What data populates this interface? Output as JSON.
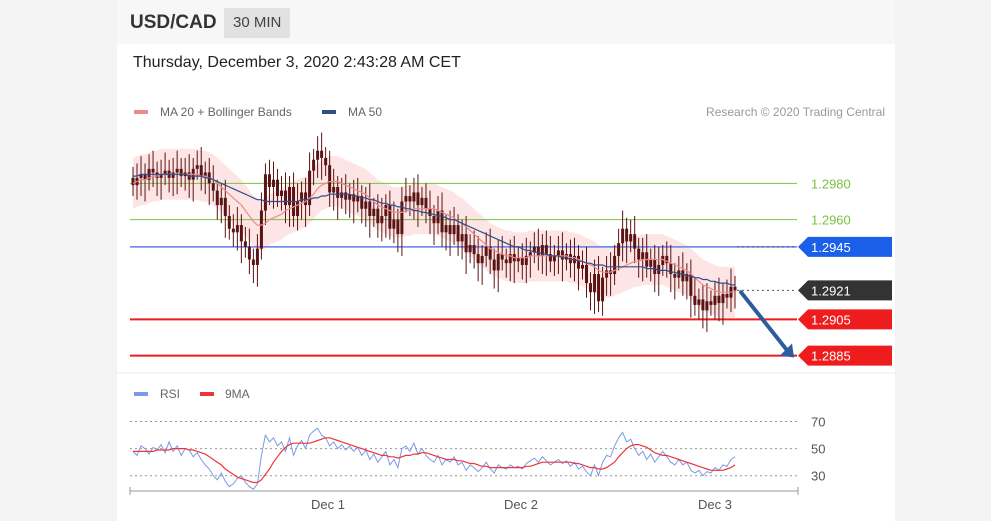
{
  "header": {
    "pair": "USD/CAD",
    "timeframe": "30 MIN"
  },
  "date_line": "Thursday, December 3, 2020 2:43:28 AM CET",
  "credit": "Research © 2020 Trading Central",
  "colors": {
    "ma20": "#f08a8a",
    "band": "#fde0e0",
    "ma50": "#2c4f8c",
    "candle": "#5a1414",
    "green_level": "#7bc043",
    "blue_level": "#5b7fe8",
    "red_level": "#ee1c1c",
    "current": "#333333",
    "arrow": "#2e5b9e",
    "rsi": "#7b9be3",
    "rsi_ma": "#e8383d"
  },
  "chart_data": [
    {
      "type": "candlestick",
      "legend": [
        {
          "label": "MA 20 + Bollinger Bands",
          "color": "#f08a8a"
        },
        {
          "label": "MA 50",
          "color": "#2c4f8c"
        }
      ],
      "ylim": [
        1.2876,
        1.3005
      ],
      "x_ticks": [
        "Dec 1",
        "Dec 2",
        "Dec 3"
      ],
      "levels": [
        {
          "value": 1.298,
          "label": "1.2980",
          "style": "green-line"
        },
        {
          "value": 1.296,
          "label": "1.2960",
          "style": "green-line"
        },
        {
          "value": 1.2945,
          "label": "1.2945",
          "style": "blue-tag"
        },
        {
          "value": 1.2921,
          "label": "1.2921",
          "style": "current-price-tag"
        },
        {
          "value": 1.2905,
          "label": "1.2905",
          "style": "red-tag"
        },
        {
          "value": 1.2885,
          "label": "1.2885",
          "style": "red-tag"
        }
      ],
      "forecast_arrow": {
        "from": 1.292,
        "to": 1.2884,
        "direction": "down"
      },
      "close": [
        1.2979,
        1.2983,
        1.2985,
        1.2982,
        1.2988,
        1.2986,
        1.2983,
        1.2985,
        1.2987,
        1.2983,
        1.2986,
        1.2988,
        1.2984,
        1.2986,
        1.2982,
        1.2988,
        1.299,
        1.2984,
        1.2986,
        1.298,
        1.2976,
        1.2968,
        1.2972,
        1.2962,
        1.2955,
        1.2953,
        1.2957,
        1.2948,
        1.2945,
        1.2938,
        1.2935,
        1.2944,
        1.2965,
        1.2985,
        1.2978,
        1.2982,
        1.2973,
        1.2976,
        1.2968,
        1.2978,
        1.2962,
        1.297,
        1.2975,
        1.2968,
        1.2987,
        1.2993,
        1.2998,
        1.2994,
        1.299,
        1.2975,
        1.2978,
        1.2972,
        1.2975,
        1.2971,
        1.2974,
        1.297,
        1.2973,
        1.2966,
        1.297,
        1.2962,
        1.2966,
        1.2958,
        1.2962,
        1.2968,
        1.2955,
        1.296,
        1.2952,
        1.297,
        1.2973,
        1.297,
        1.2975,
        1.2968,
        1.2972,
        1.2966,
        1.2962,
        1.2958,
        1.2965,
        1.2953,
        1.2957,
        1.2952,
        1.2957,
        1.2948,
        1.2952,
        1.2942,
        1.2946,
        1.2941,
        1.2936,
        1.294,
        1.2945,
        1.2938,
        1.2932,
        1.2941,
        1.2938,
        1.2936,
        1.2941,
        1.2937,
        1.2939,
        1.2935,
        1.294,
        1.2942,
        1.2945,
        1.294,
        1.2946,
        1.2941,
        1.2937,
        1.294,
        1.2943,
        1.2938,
        1.2941,
        1.2936,
        1.294,
        1.2933,
        1.2935,
        1.2925,
        1.292,
        1.293,
        1.2915,
        1.2928,
        1.2932,
        1.293,
        1.294,
        1.2947,
        1.2955,
        1.2948,
        1.2952,
        1.2944,
        1.2938,
        1.2942,
        1.2934,
        1.2938,
        1.293,
        1.2935,
        1.294,
        1.2936,
        1.293,
        1.2928,
        1.2932,
        1.2926,
        1.293,
        1.2918,
        1.2913,
        1.2916,
        1.291,
        1.2915,
        1.2913,
        1.2918,
        1.2914,
        1.2919,
        1.2917,
        1.2923,
        1.2921
      ],
      "ma20": [
        1.298,
        1.2981,
        1.2982,
        1.2982,
        1.2983,
        1.2984,
        1.2984,
        1.2985,
        1.2985,
        1.2985,
        1.2985,
        1.2985,
        1.2985,
        1.2985,
        1.2985,
        1.2985,
        1.2985,
        1.2984,
        1.2984,
        1.2983,
        1.2982,
        1.298,
        1.2978,
        1.2976,
        1.2974,
        1.2972,
        1.297,
        1.2968,
        1.2965,
        1.2962,
        1.2959,
        1.2957,
        1.2957,
        1.2958,
        1.296,
        1.2961,
        1.2962,
        1.2963,
        1.2965,
        1.2966,
        1.2967,
        1.2968,
        1.2969,
        1.297,
        1.2972,
        1.2974,
        1.2977,
        1.2979,
        1.298,
        1.2981,
        1.2981,
        1.2981,
        1.298,
        1.2979,
        1.2978,
        1.2977,
        1.2976,
        1.2975,
        1.2974,
        1.2972,
        1.297,
        1.2968,
        1.2967,
        1.2966,
        1.2965,
        1.2964,
        1.2964,
        1.2964,
        1.2965,
        1.2965,
        1.2966,
        1.2966,
        1.2966,
        1.2966,
        1.2966,
        1.2966,
        1.2965,
        1.2964,
        1.2963,
        1.2962,
        1.2961,
        1.2959,
        1.2958,
        1.2956,
        1.2954,
        1.2952,
        1.295,
        1.2948,
        1.2946,
        1.2944,
        1.2943,
        1.2942,
        1.2941,
        1.294,
        1.294,
        1.2939,
        1.2939,
        1.2939,
        1.2939,
        1.294,
        1.294,
        1.294,
        1.294,
        1.294,
        1.294,
        1.294,
        1.294,
        1.294,
        1.294,
        1.2939,
        1.2939,
        1.2938,
        1.2937,
        1.2936,
        1.2935,
        1.2934,
        1.2932,
        1.2931,
        1.2931,
        1.2931,
        1.2932,
        1.2933,
        1.2934,
        1.2935,
        1.2936,
        1.2937,
        1.2937,
        1.2938,
        1.2938,
        1.2938,
        1.2938,
        1.2938,
        1.2938,
        1.2937,
        1.2936,
        1.2935,
        1.2934,
        1.2933,
        1.2932,
        1.293,
        1.2928,
        1.2926,
        1.2924,
        1.2923,
        1.2922,
        1.2921,
        1.292,
        1.292,
        1.292,
        1.292,
        1.292
      ],
      "ma50": [
        1.2984,
        1.2984,
        1.2985,
        1.2985,
        1.2985,
        1.2985,
        1.2985,
        1.2985,
        1.2985,
        1.2985,
        1.2985,
        1.2985,
        1.2985,
        1.2985,
        1.2984,
        1.2984,
        1.2984,
        1.2984,
        1.2983,
        1.2983,
        1.2982,
        1.2981,
        1.298,
        1.2979,
        1.2978,
        1.2977,
        1.2976,
        1.2975,
        1.2974,
        1.2973,
        1.2972,
        1.2971,
        1.2971,
        1.297,
        1.297,
        1.297,
        1.297,
        1.297,
        1.297,
        1.297,
        1.297,
        1.297,
        1.2971,
        1.2971,
        1.2971,
        1.2972,
        1.2972,
        1.2973,
        1.2973,
        1.2974,
        1.2974,
        1.2974,
        1.2974,
        1.2974,
        1.2974,
        1.2973,
        1.2973,
        1.2972,
        1.2972,
        1.2971,
        1.2971,
        1.297,
        1.2969,
        1.2969,
        1.2968,
        1.2968,
        1.2967,
        1.2967,
        1.2966,
        1.2966,
        1.2965,
        1.2965,
        1.2964,
        1.2964,
        1.2963,
        1.2963,
        1.2962,
        1.2962,
        1.2961,
        1.296,
        1.296,
        1.2959,
        1.2958,
        1.2957,
        1.2956,
        1.2955,
        1.2954,
        1.2953,
        1.2952,
        1.2951,
        1.295,
        1.2949,
        1.2948,
        1.2947,
        1.2946,
        1.2945,
        1.2945,
        1.2944,
        1.2943,
        1.2943,
        1.2942,
        1.2942,
        1.2941,
        1.2941,
        1.294,
        1.294,
        1.294,
        1.2939,
        1.2939,
        1.2938,
        1.2938,
        1.2937,
        1.2937,
        1.2936,
        1.2936,
        1.2935,
        1.2935,
        1.2935,
        1.2934,
        1.2934,
        1.2934,
        1.2934,
        1.2934,
        1.2934,
        1.2934,
        1.2934,
        1.2934,
        1.2934,
        1.2933,
        1.2933,
        1.2933,
        1.2932,
        1.2932,
        1.2932,
        1.2931,
        1.2931,
        1.293,
        1.293,
        1.2929,
        1.2929,
        1.2928,
        1.2928,
        1.2927,
        1.2927,
        1.2926,
        1.2926,
        1.2925,
        1.2925,
        1.2925,
        1.2924,
        1.2924
      ]
    },
    {
      "type": "line",
      "legend": [
        {
          "label": "RSI",
          "color": "#7b9be3"
        },
        {
          "label": "9MA",
          "color": "#e8383d"
        }
      ],
      "ylim": [
        18,
        80
      ],
      "y_ticks": [
        70,
        50,
        30
      ],
      "rsi": [
        48,
        45,
        52,
        50,
        46,
        51,
        49,
        53,
        47,
        55,
        48,
        52,
        45,
        50,
        49,
        44,
        47,
        42,
        38,
        35,
        30,
        27,
        32,
        26,
        22,
        24,
        28,
        30,
        25,
        22,
        20,
        24,
        45,
        60,
        55,
        58,
        52,
        55,
        48,
        58,
        45,
        52,
        56,
        50,
        60,
        63,
        65,
        60,
        58,
        52,
        55,
        50,
        53,
        49,
        52,
        48,
        51,
        45,
        49,
        42,
        46,
        40,
        44,
        48,
        38,
        42,
        36,
        50,
        52,
        48,
        54,
        46,
        50,
        45,
        42,
        40,
        45,
        38,
        42,
        40,
        44,
        38,
        40,
        34,
        38,
        36,
        33,
        36,
        40,
        35,
        32,
        38,
        36,
        35,
        38,
        36,
        37,
        35,
        39,
        41,
        43,
        40,
        44,
        41,
        38,
        40,
        42,
        39,
        41,
        37,
        40,
        35,
        37,
        33,
        30,
        38,
        30,
        40,
        45,
        44,
        52,
        58,
        62,
        55,
        57,
        50,
        45,
        48,
        42,
        46,
        40,
        44,
        48,
        44,
        40,
        38,
        42,
        38,
        40,
        34,
        32,
        34,
        30,
        33,
        32,
        36,
        34,
        38,
        37,
        42,
        44
      ],
      "ma9": [
        48,
        48,
        48,
        48,
        48,
        48,
        49,
        49,
        49,
        49,
        50,
        50,
        50,
        50,
        49,
        49,
        48,
        47,
        46,
        44,
        42,
        40,
        38,
        35,
        33,
        31,
        29,
        28,
        27,
        26,
        25,
        25,
        27,
        31,
        35,
        40,
        44,
        48,
        51,
        53,
        54,
        54,
        54,
        54,
        54,
        55,
        56,
        57,
        58,
        58,
        57,
        56,
        55,
        54,
        53,
        52,
        51,
        50,
        49,
        48,
        47,
        46,
        45,
        45,
        44,
        44,
        43,
        44,
        45,
        45,
        46,
        46,
        47,
        47,
        46,
        45,
        44,
        43,
        42,
        42,
        42,
        41,
        41,
        40,
        39,
        39,
        38,
        37,
        37,
        36,
        36,
        36,
        36,
        36,
        36,
        36,
        36,
        36,
        37,
        37,
        38,
        39,
        40,
        40,
        40,
        40,
        40,
        40,
        40,
        40,
        39,
        39,
        38,
        37,
        36,
        36,
        35,
        35,
        36,
        38,
        40,
        44,
        47,
        50,
        52,
        53,
        53,
        52,
        51,
        49,
        47,
        46,
        45,
        45,
        44,
        43,
        42,
        41,
        40,
        39,
        38,
        37,
        36,
        35,
        34,
        34,
        34,
        34,
        35,
        36,
        38
      ]
    }
  ]
}
